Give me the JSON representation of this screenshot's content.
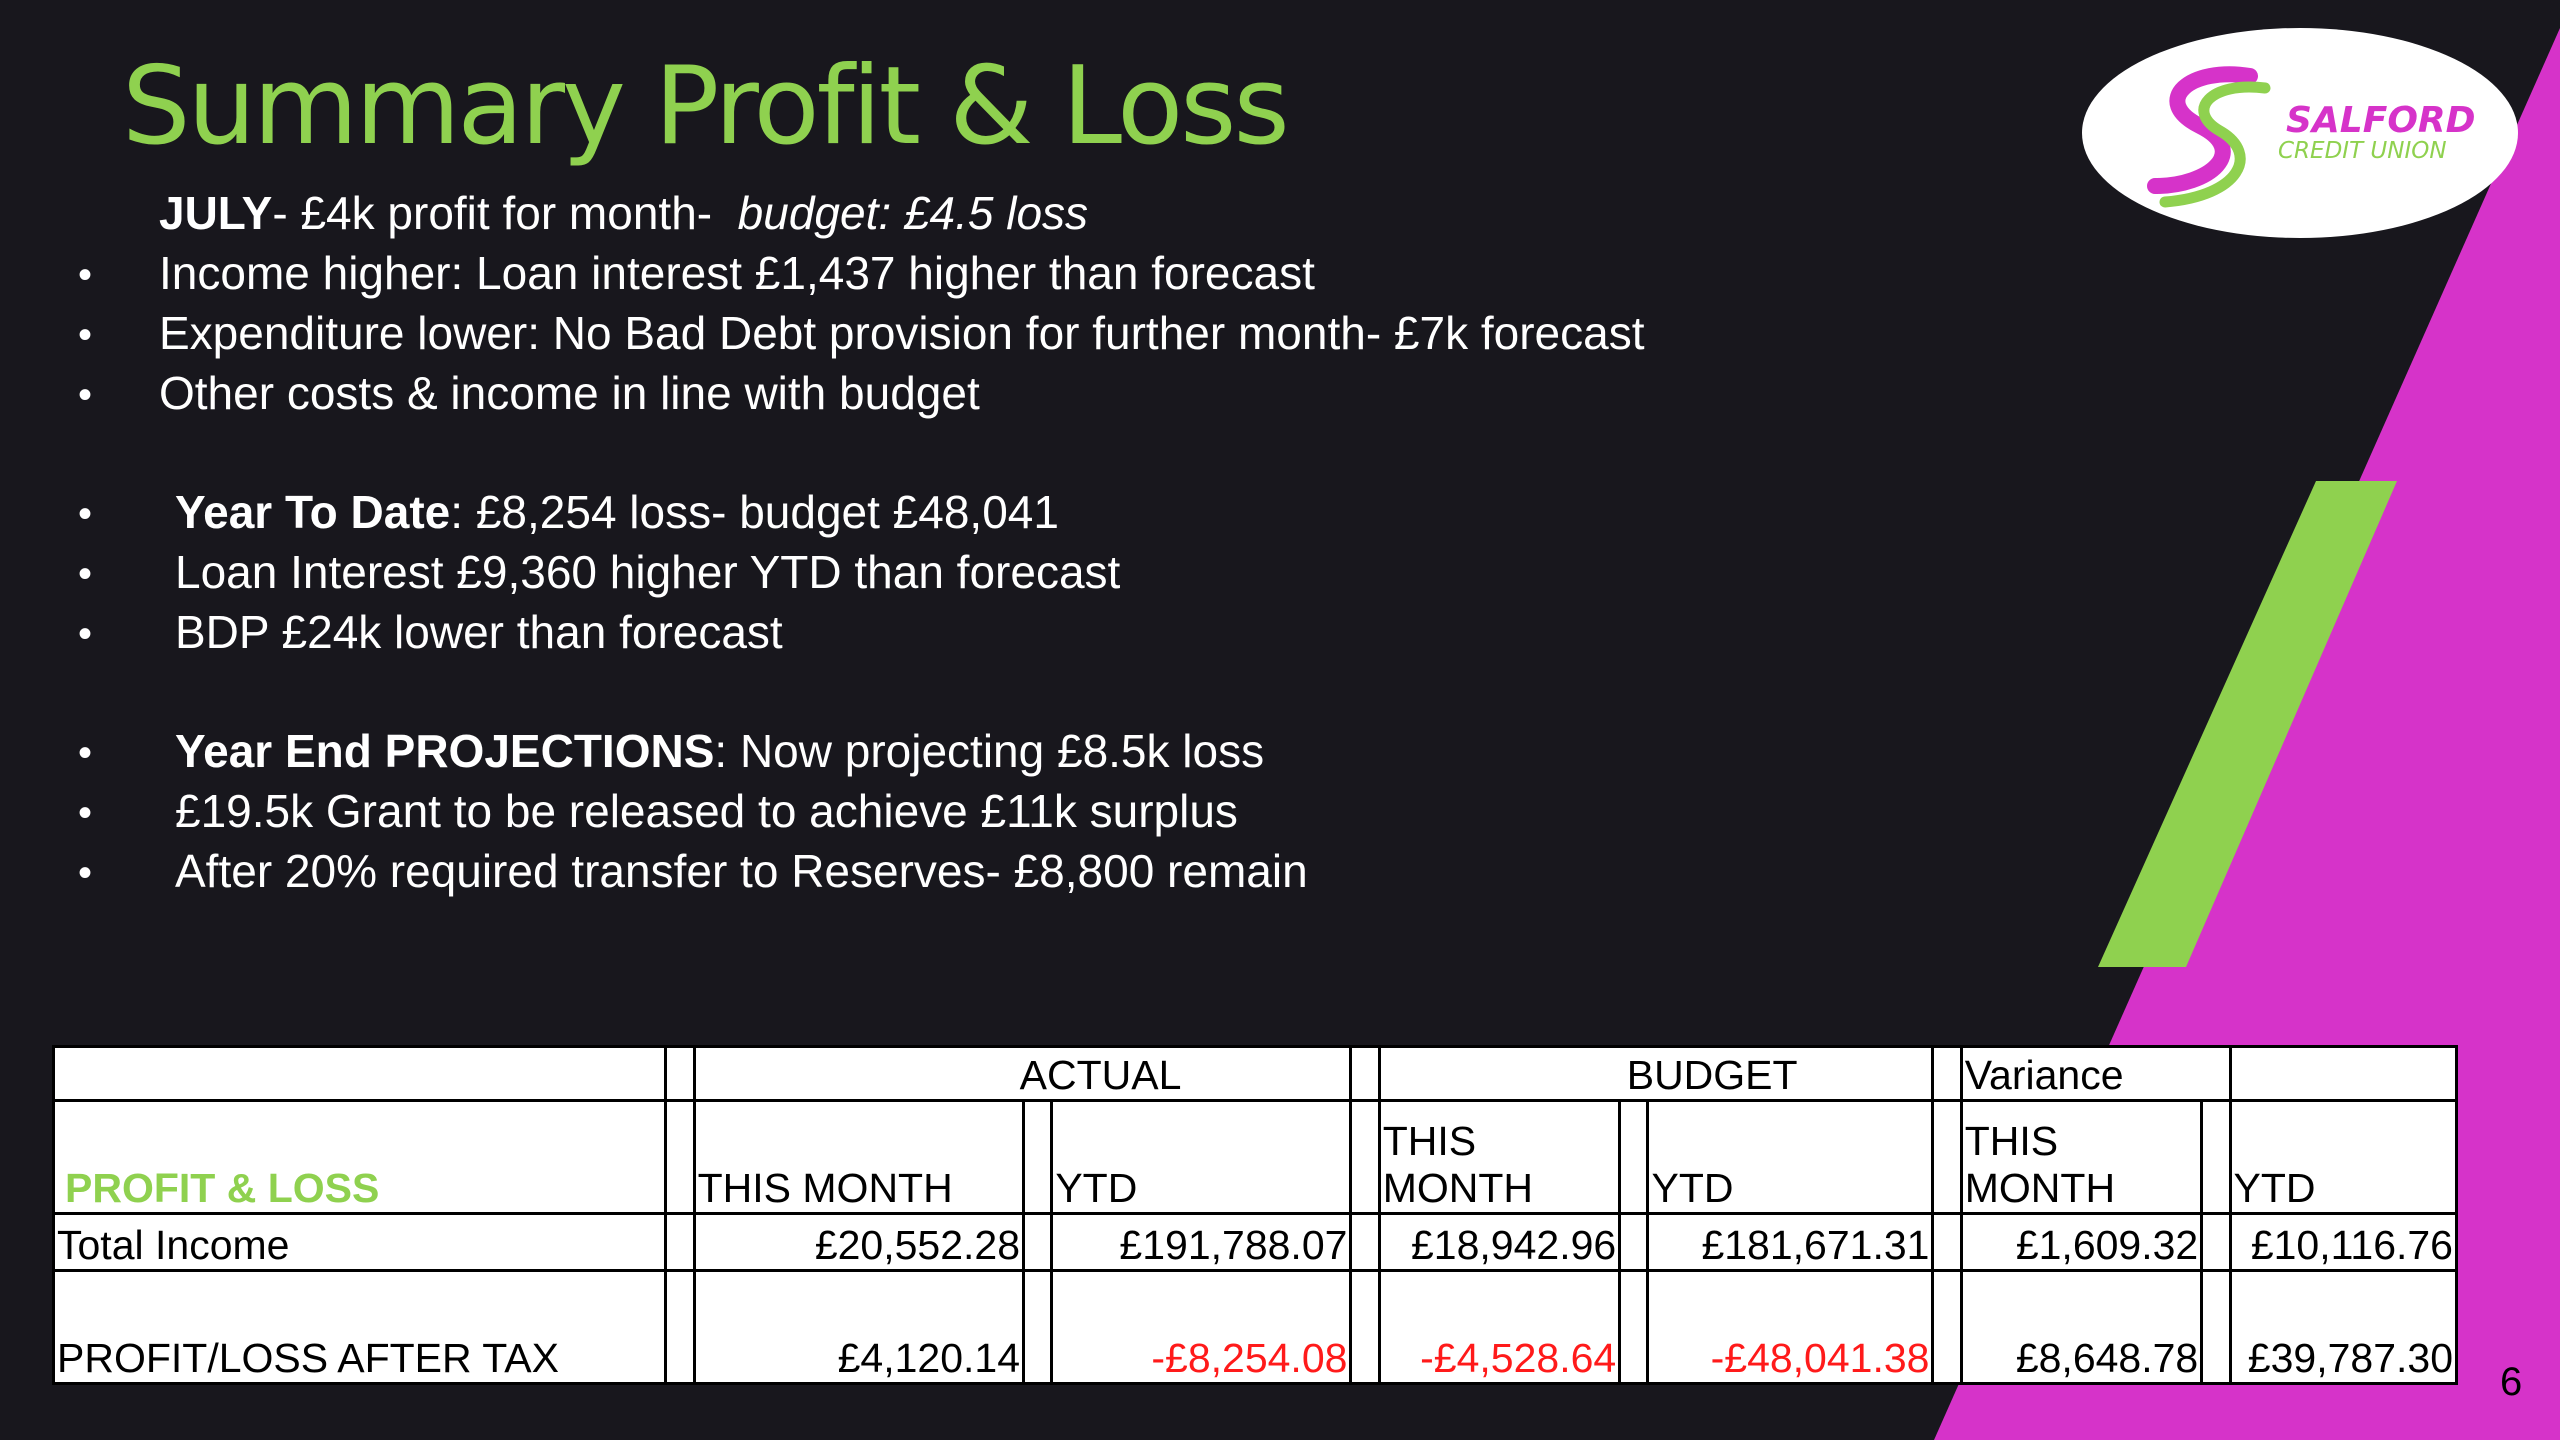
{
  "title": "Summary Profit & Loss",
  "logo": {
    "line1": "SALFORD",
    "line2": "CREDIT UNION"
  },
  "july": {
    "heading": "JULY",
    "text": "- £4k profit for month-",
    "budget_text": "budget: £4.5 loss"
  },
  "bullets_month": [
    "Income higher: Loan interest £1,437 higher than forecast",
    "Expenditure lower: No Bad Debt provision for further month- £7k forecast",
    "Other costs & income in line with budget"
  ],
  "ytd": {
    "heading": "Year To Date",
    "text": ": £8,254 loss- budget £48,041"
  },
  "bullets_ytd": [
    "Loan Interest £9,360 higher YTD than forecast",
    "BDP £24k lower than forecast"
  ],
  "projections": {
    "heading": "Year End PROJECTIONS",
    "text": ": Now projecting £8.5k loss"
  },
  "bullets_projections": [
    "£19.5k Grant to be released to achieve £11k surplus",
    "After 20% required transfer to Reserves- £8,800 remain"
  ],
  "bullet_char": "•",
  "table": {
    "group_headers": {
      "actual": "ACTUAL",
      "budget": "BUDGET",
      "variance": "Variance"
    },
    "row_label_header": "PROFIT & LOSS",
    "col_headers": {
      "actual_month": "THIS MONTH",
      "actual_ytd": "YTD",
      "budget_month_1": "THIS",
      "budget_month_2": "MONTH",
      "budget_ytd": "YTD",
      "variance_month_1": "THIS",
      "variance_month_2": "MONTH",
      "variance_ytd": "YTD"
    },
    "rows": [
      {
        "label": "Total Income",
        "actual_month": "£20,552.28",
        "actual_ytd": "£191,788.07",
        "budget_month": "£18,942.96",
        "budget_ytd": "£181,671.31",
        "variance_month": "£1,609.32",
        "variance_ytd": "£10,116.76"
      },
      {
        "label": "PROFIT/LOSS AFTER TAX",
        "actual_month": "£4,120.14",
        "actual_ytd": "-£8,254.08",
        "budget_month": "-£4,528.64",
        "budget_ytd": "-£48,041.38",
        "variance_month": "£8,648.78",
        "variance_ytd": "£39,787.30"
      }
    ]
  },
  "page_number": "6",
  "colors": {
    "background": "#18171d",
    "accent_green": "#8fd14f",
    "accent_magenta": "#d633c9",
    "negative": "#ff1a1a"
  }
}
